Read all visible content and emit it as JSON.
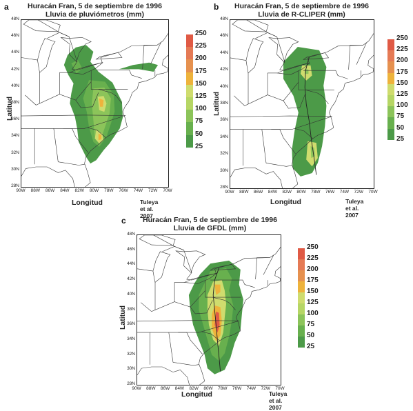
{
  "levels": [
    "250",
    "225",
    "200",
    "175",
    "150",
    "125",
    "100",
    "75",
    "50",
    "25"
  ],
  "colors": [
    "#e05a45",
    "#e57a55",
    "#e6914f",
    "#eeb33c",
    "#cfdc6e",
    "#b6d665",
    "#8cc45a",
    "#68b04e",
    "#4c9a48"
  ],
  "panels": [
    {
      "letter": "a",
      "title1": "Huracán Fran, 5 de septiembre de 1996",
      "title2": "Lluvia de pluviómetros (mm)",
      "ylabel": "Latitud",
      "xlabel": "Longitud",
      "credit": "Tuleya et al. 2007",
      "yticks": [
        "48N",
        "46N",
        "44N",
        "42N",
        "40N",
        "38N",
        "36N",
        "34N",
        "32N",
        "30N",
        "28N"
      ],
      "xticks": [
        "90W",
        "88W",
        "86W",
        "84W",
        "82W",
        "80W",
        "78W",
        "76W",
        "74W",
        "72W",
        "70W"
      ]
    },
    {
      "letter": "b",
      "title1": "Huracán Fran, 5 de septiembre de 1996",
      "title2": "Lluvia de R-CLIPER (mm)",
      "ylabel": "Latitud",
      "xlabel": "Longitud",
      "credit": "Tuleya et al. 2007",
      "yticks": [
        "48N",
        "46N",
        "44N",
        "42N",
        "40N",
        "38N",
        "36N",
        "34N",
        "32N",
        "30N",
        "28N"
      ],
      "xticks": [
        "90W",
        "88W",
        "86W",
        "84W",
        "82W",
        "80W",
        "78W",
        "76W",
        "74W",
        "72W",
        "70W"
      ]
    },
    {
      "letter": "c",
      "title1": "Huracán Fran, 5 de septiembre de 1996",
      "title2": "Lluvia de GFDL (mm)",
      "ylabel": "Latitud",
      "xlabel": "Longitud",
      "credit": "Tuleya et al. 2007",
      "yticks": [
        "48N",
        "46N",
        "44N",
        "42N",
        "40N",
        "38N",
        "36N",
        "34N",
        "32N",
        "30N",
        "28N"
      ],
      "xticks": [
        "90W",
        "88W",
        "86W",
        "84W",
        "82W",
        "80W",
        "78W",
        "76W",
        "74W",
        "72W",
        "70W"
      ]
    }
  ]
}
